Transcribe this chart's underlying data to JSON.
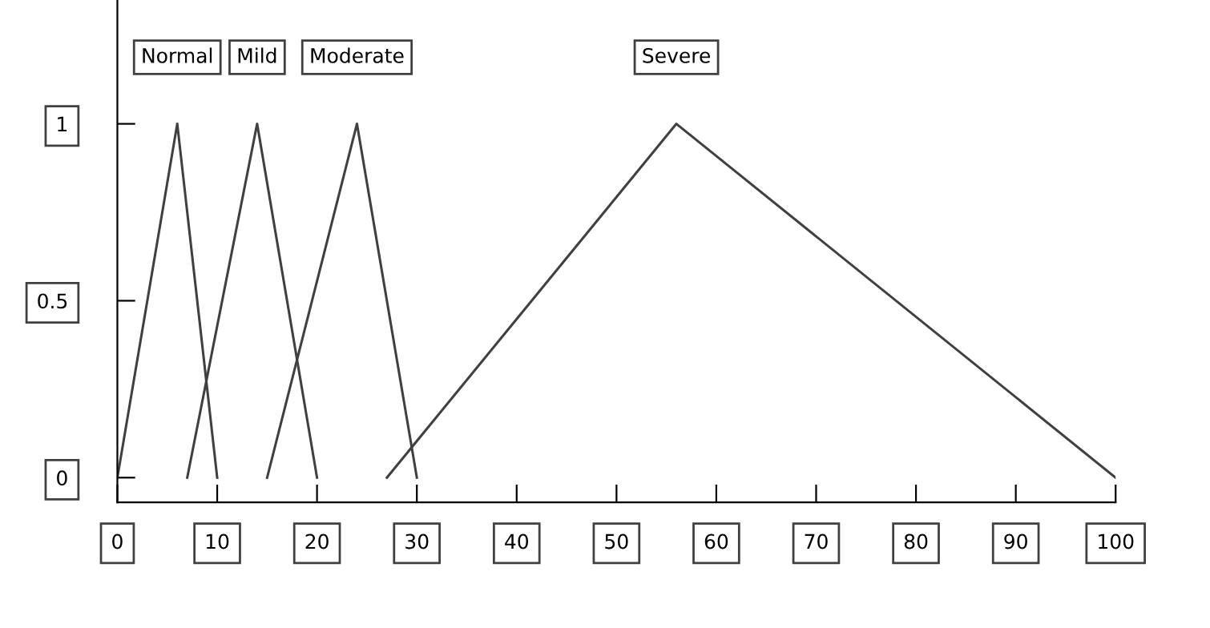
{
  "chart_data": {
    "type": "line",
    "xlim": [
      0,
      100
    ],
    "ylim": [
      -0.07,
      1.35
    ],
    "xticks": [
      0,
      10,
      20,
      30,
      40,
      50,
      60,
      70,
      80,
      90,
      100
    ],
    "yticks": [
      0,
      0.5,
      1
    ],
    "grid": false,
    "legend": "top",
    "marker": "none",
    "line_style": "solid",
    "series": [
      {
        "name": "Normal",
        "color": "#404040",
        "x": [
          0,
          6,
          10
        ],
        "values": [
          0,
          1,
          0
        ]
      },
      {
        "name": "Mild",
        "color": "#404040",
        "x": [
          7,
          14,
          20
        ],
        "values": [
          0,
          1,
          0
        ]
      },
      {
        "name": "Moderate",
        "color": "#404040",
        "x": [
          15,
          24,
          30
        ],
        "values": [
          0,
          1,
          0
        ]
      },
      {
        "name": "Severe",
        "color": "#404040",
        "x": [
          27,
          56,
          100
        ],
        "values": [
          0,
          1,
          0
        ]
      }
    ]
  }
}
